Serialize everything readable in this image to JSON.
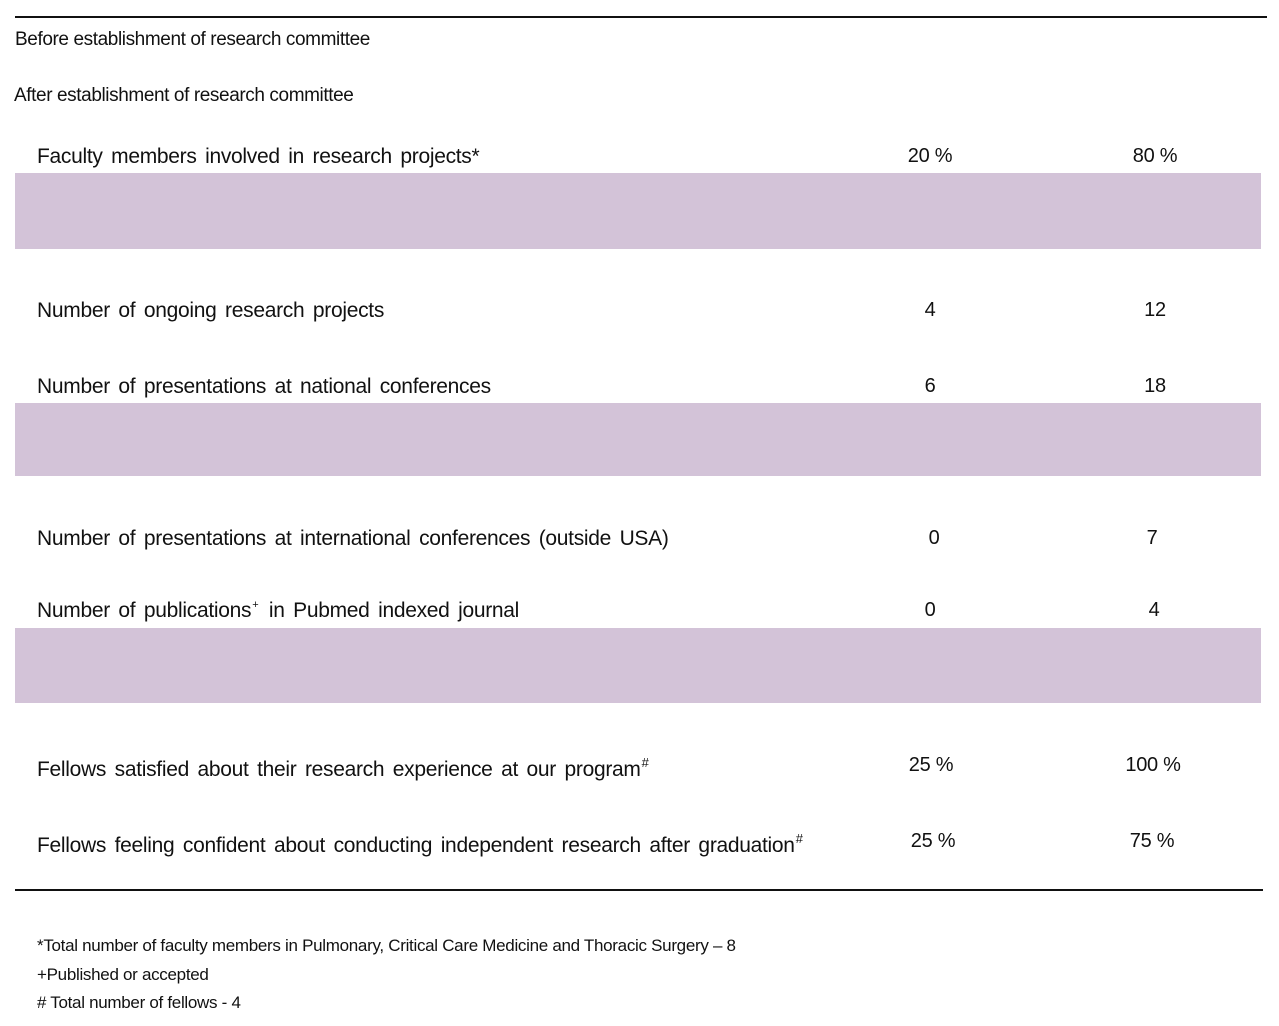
{
  "headers": {
    "before": "Before establishment of research committee",
    "after": "After establishment of research committee"
  },
  "band_color": "#d3c3d8",
  "rows": [
    {
      "label": "Faculty members involved in research projects",
      "marker": "*",
      "before": "20 %",
      "after": "80 %"
    },
    {
      "label": "Number of ongoing research projects",
      "marker": "",
      "before": "4",
      "after": "12"
    },
    {
      "label": "Number of presentations at national conferences",
      "marker": "",
      "before": "6",
      "after": "18"
    },
    {
      "label": "Number of presentations at international conferences (outside USA)",
      "marker": "",
      "before": "0",
      "after": "7"
    },
    {
      "label_pre": "Number of publications",
      "marker": "+",
      "label_post": "in Pubmed indexed journal",
      "before": "0",
      "after": "4"
    },
    {
      "label": "Fellows satisfied about their research experience at our program",
      "marker": "#",
      "before": "25 %",
      "after": "100 %"
    },
    {
      "label": "Fellows feeling confident about conducting independent research after graduation",
      "marker": "#",
      "before": "25 %",
      "after": "75 %"
    }
  ],
  "footnotes": [
    "*Total number of faculty members in Pulmonary, Critical Care Medicine and Thoracic Surgery – 8",
    "+Published or accepted",
    "# Total number of fellows - 4"
  ]
}
